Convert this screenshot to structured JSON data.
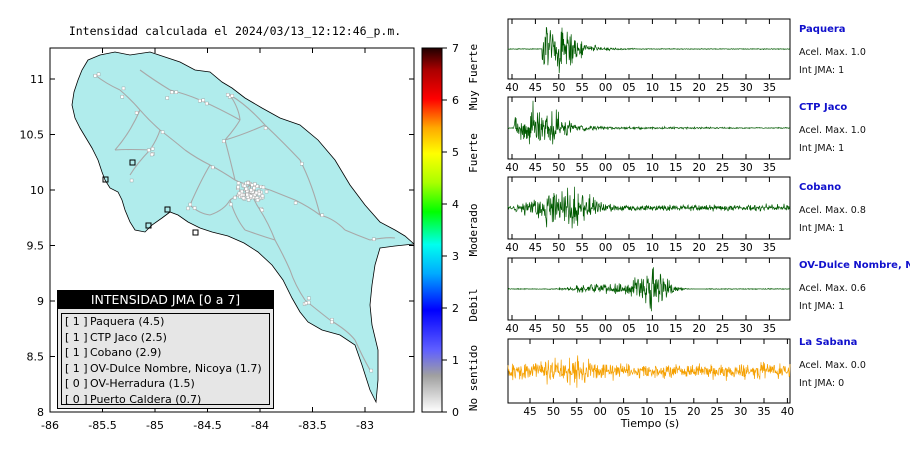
{
  "map": {
    "title": "Intensidad calculada el 2024/03/13_12:12:46_p.m.",
    "x_ticks": [
      "-86",
      "-85.5",
      "-85",
      "-84.5",
      "-84",
      "-83.5",
      "-83"
    ],
    "y_ticks": [
      "11",
      "10.5",
      "10",
      "9.5",
      "9",
      "8.5",
      "8"
    ],
    "land_color": "#b0ecec",
    "road_color": "#a8a8a8",
    "legend": {
      "header": "INTENSIDAD JMA [0 a 7]",
      "rows": [
        {
          "int": "[ 1 ]",
          "label": "Paquera (4.5)"
        },
        {
          "int": "[ 1 ]",
          "label": "CTP Jaco (2.5)"
        },
        {
          "int": "[ 1 ]",
          "label": "Cobano (2.9)"
        },
        {
          "int": "[ 1 ]",
          "label": "OV-Dulce Nombre, Nicoya (1.7)"
        },
        {
          "int": "[ 0 ]",
          "label": "OV-Herradura (1.5)"
        },
        {
          "int": "[ 0 ]",
          "label": "Puerto Caldera (0.7)"
        }
      ]
    }
  },
  "colorbar": {
    "ticks": [
      "7",
      "6",
      "5",
      "4",
      "3",
      "2",
      "1",
      "0"
    ],
    "labels": [
      "Muy Fuerte",
      "Fuerte",
      "Moderado",
      "Debil",
      "No sentido"
    ]
  },
  "chart_data": {
    "type": "line",
    "xlabel": "Tiempo (s)",
    "x_tick_labels": [
      "40",
      "45",
      "50",
      "55",
      "00",
      "05",
      "10",
      "15",
      "20",
      "25",
      "30",
      "35"
    ],
    "last_panel_x_tick_labels": [
      "45",
      "50",
      "55",
      "00",
      "05",
      "10",
      "15",
      "20",
      "25",
      "30",
      "35",
      "40"
    ],
    "series": [
      {
        "name": "Paquera",
        "accel_label": "Acel. Max. 1.0",
        "jma_label": "Int JMA: 1",
        "color": "#005a00"
      },
      {
        "name": "CTP Jaco",
        "accel_label": "Acel. Max. 1.0",
        "jma_label": "Int JMA: 1",
        "color": "#005a00"
      },
      {
        "name": "Cobano",
        "accel_label": "Acel. Max. 0.8",
        "jma_label": "Int JMA: 1",
        "color": "#005a00"
      },
      {
        "name": "OV-Dulce Nombre, Nico",
        "accel_label": "Acel. Max. 0.6",
        "jma_label": "Int JMA: 1",
        "color": "#005a00"
      },
      {
        "name": "La Sabana",
        "accel_label": "Acel. Max. 0.0",
        "jma_label": "Int JMA: 0",
        "color": "#f5a000"
      }
    ]
  }
}
